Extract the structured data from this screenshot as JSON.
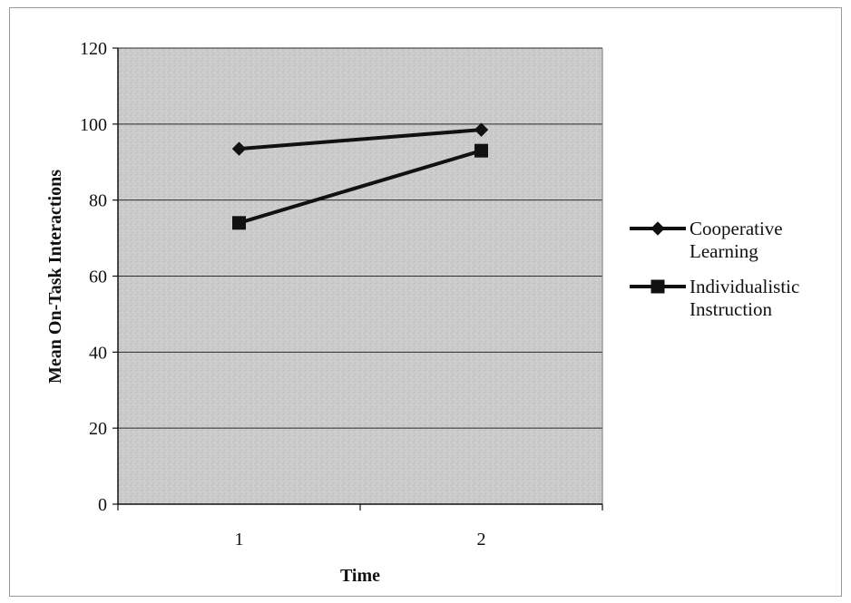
{
  "chart_data": {
    "type": "line",
    "title": "",
    "xlabel": "Time",
    "ylabel": "Mean On-Task Interactions",
    "categories": [
      "1",
      "2"
    ],
    "ylim": [
      0,
      120
    ],
    "yticks": [
      0,
      20,
      40,
      60,
      80,
      100,
      120
    ],
    "grid": true,
    "legend_position": "right",
    "plot_background": "#c8c8c8",
    "series": [
      {
        "name_lines": [
          "Cooperative",
          "Learning"
        ],
        "marker": "diamond",
        "color": "#111111",
        "values": [
          93.5,
          98.5
        ]
      },
      {
        "name_lines": [
          "Individualistic",
          "Instruction"
        ],
        "marker": "square",
        "color": "#111111",
        "values": [
          74,
          93
        ]
      }
    ]
  }
}
